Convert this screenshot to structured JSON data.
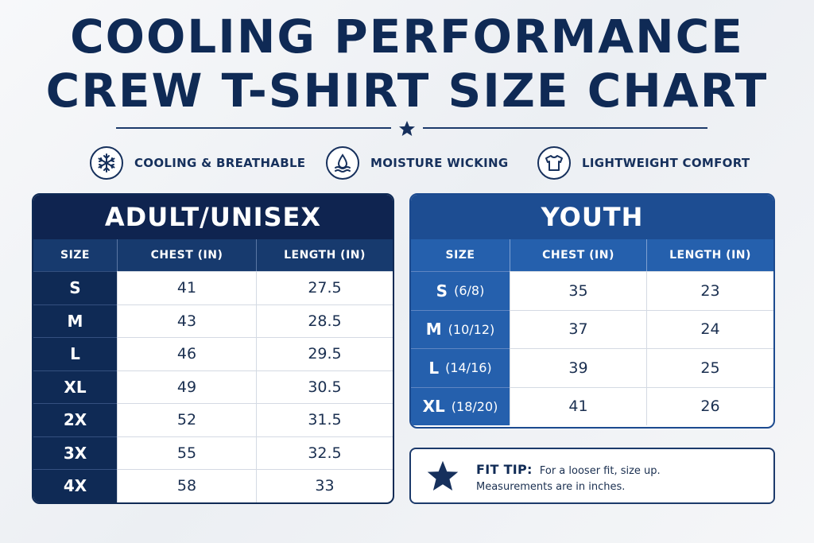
{
  "title": {
    "line1": "COOLING PERFORMANCE",
    "line2": "CREW T-SHIRT SIZE CHART"
  },
  "divider_icon": "star-icon",
  "features": [
    {
      "icon": "snowflake-icon",
      "label": "COOLING & BREATHABLE"
    },
    {
      "icon": "water-drop-icon",
      "label": "MOISTURE WICKING"
    },
    {
      "icon": "t-shirt-icon",
      "label": "LIGHTWEIGHT COMFORT"
    }
  ],
  "adult": {
    "title": "ADULT/UNISEX",
    "headers": [
      "SIZE",
      "CHEST (IN)",
      "LENGTH (IN)"
    ],
    "rows": [
      {
        "size": "S",
        "chest": "41",
        "length": "27.5"
      },
      {
        "size": "M",
        "chest": "43",
        "length": "28.5"
      },
      {
        "size": "L",
        "chest": "46",
        "length": "29.5"
      },
      {
        "size": "XL",
        "chest": "49",
        "length": "30.5"
      },
      {
        "size": "2X",
        "chest": "52",
        "length": "31.5"
      },
      {
        "size": "3X",
        "chest": "55",
        "length": "32.5"
      },
      {
        "size": "4X",
        "chest": "58",
        "length": "33"
      }
    ]
  },
  "youth": {
    "title": "YOUTH",
    "headers": [
      "SIZE",
      "CHEST (IN)",
      "LENGTH (IN)"
    ],
    "rows": [
      {
        "size": "S",
        "range": "(6/8)",
        "chest": "35",
        "length": "23"
      },
      {
        "size": "M",
        "range": "(10/12)",
        "chest": "37",
        "length": "24"
      },
      {
        "size": "L",
        "range": "(14/16)",
        "chest": "39",
        "length": "25"
      },
      {
        "size": "XL",
        "range": "(18/20)",
        "chest": "41",
        "length": "26"
      }
    ]
  },
  "fit_tip": {
    "icon": "star-icon",
    "label": "FIT TIP:",
    "text1": "For a looser fit, size up.",
    "text2": "Measurements are in inches."
  },
  "colors": {
    "navy": "#0f2a55",
    "adult_header": "#0f2450",
    "youth_header": "#1d4d92",
    "youth_accent": "#2560ad"
  }
}
